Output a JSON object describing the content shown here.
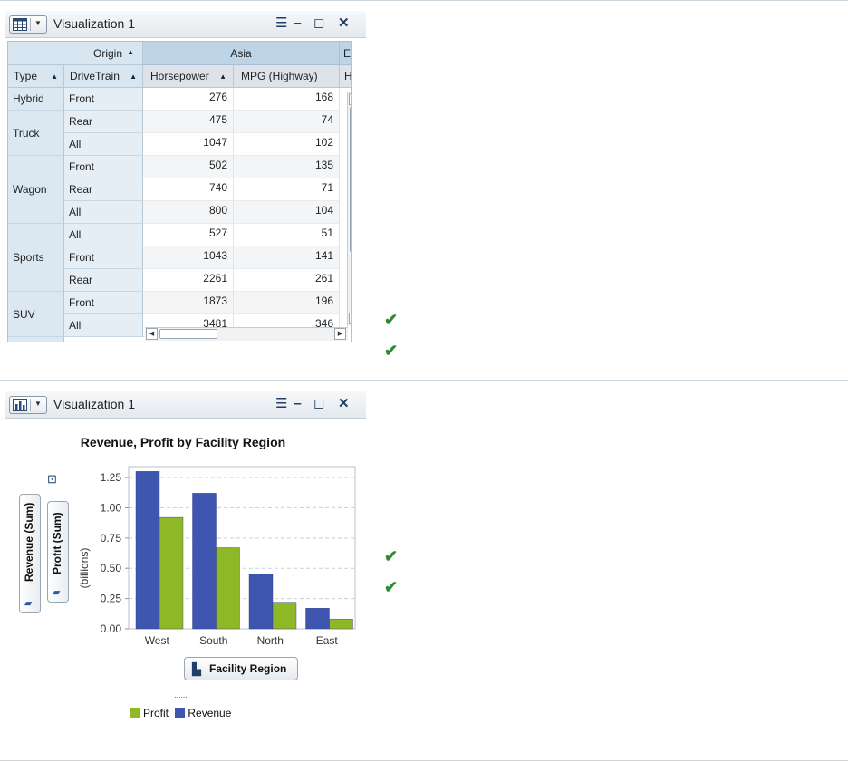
{
  "panel1": {
    "title": "Visualization 1",
    "crosstab": {
      "origin_label": "Origin",
      "type_label": "Type",
      "drivetrain_label": "DriveTrain",
      "group_asia": "Asia",
      "group_europe": "Eur",
      "col_horsepower": "Horsepower",
      "col_mpg": "MPG (Highway)",
      "col_trunc": "Hor",
      "type_groups": [
        "Hybrid",
        "Truck",
        "Wagon",
        "Sports",
        "SUV"
      ],
      "rows": [
        {
          "drivetrain": "Front",
          "horsepower": "276",
          "mpg": "168"
        },
        {
          "drivetrain": "Rear",
          "horsepower": "475",
          "mpg": "74"
        },
        {
          "drivetrain": "All",
          "horsepower": "1047",
          "mpg": "102"
        },
        {
          "drivetrain": "Front",
          "horsepower": "502",
          "mpg": "135"
        },
        {
          "drivetrain": "Rear",
          "horsepower": "740",
          "mpg": "71"
        },
        {
          "drivetrain": "All",
          "horsepower": "800",
          "mpg": "104"
        },
        {
          "drivetrain": "All",
          "horsepower": "527",
          "mpg": "51"
        },
        {
          "drivetrain": "Front",
          "horsepower": "1043",
          "mpg": "141"
        },
        {
          "drivetrain": "Rear",
          "horsepower": "2261",
          "mpg": "261"
        },
        {
          "drivetrain": "Front",
          "horsepower": "1873",
          "mpg": "196"
        },
        {
          "drivetrain": "All",
          "horsepower": "3481",
          "mpg": "346"
        }
      ]
    }
  },
  "panel2": {
    "title": "Visualization 1",
    "y_pill_revenue": "Revenue (Sum)",
    "y_pill_profit": "Profit (Sum)",
    "x_pill": "Facility Region",
    "legend_profit": "Profit",
    "legend_revenue": "Revenue"
  },
  "colors": {
    "revenue": "#3f56b0",
    "profit": "#8fb827",
    "check": "#2e8b2e"
  },
  "chart_data": {
    "type": "bar",
    "title": "Revenue, Profit by Facility Region",
    "ylabel": "(billions)",
    "xlabel": "",
    "categories": [
      "West",
      "South",
      "North",
      "East"
    ],
    "series": [
      {
        "name": "Revenue",
        "values": [
          1.3,
          1.12,
          0.45,
          0.17
        ]
      },
      {
        "name": "Profit",
        "values": [
          0.92,
          0.67,
          0.22,
          0.08
        ]
      }
    ],
    "yticks": [
      "0.00",
      "0.25",
      "0.50",
      "0.75",
      "1.00",
      "1.25"
    ],
    "ylim": [
      0,
      1.34
    ],
    "grid": true,
    "legend_position": "bottom-left"
  }
}
